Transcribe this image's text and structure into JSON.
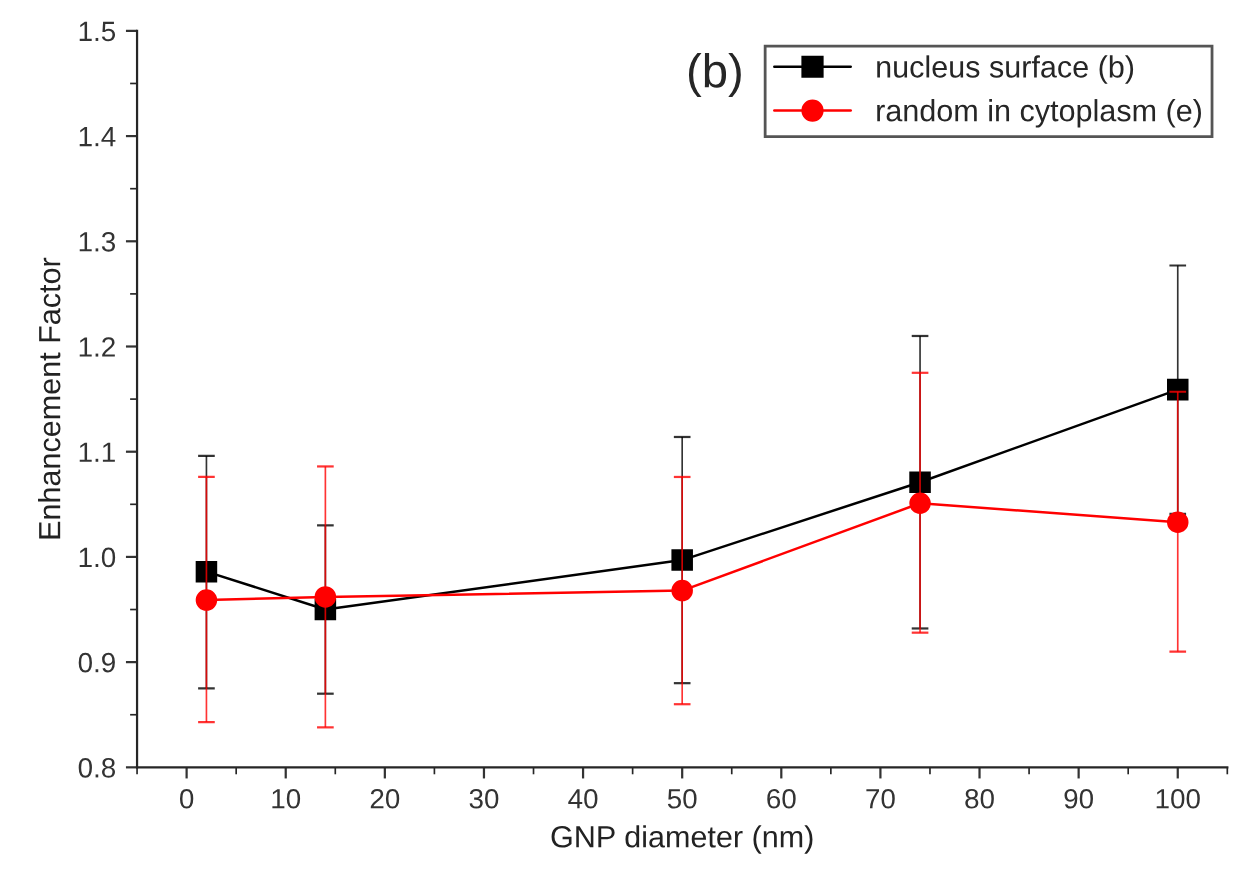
{
  "chart_data": {
    "type": "line",
    "xlabel": "GNP diameter (nm)",
    "ylabel": "Enhancement Factor",
    "annotations": [
      "(b)"
    ],
    "x": [
      2,
      14,
      50,
      74,
      100
    ],
    "series": [
      {
        "name": "nucleus surface (b)",
        "color": "#000000",
        "marker": "square",
        "values": [
          0.986,
          0.95,
          0.997,
          1.071,
          1.159
        ],
        "errors": [
          [
            0.875,
            1.096
          ],
          [
            0.87,
            1.03
          ],
          [
            0.88,
            1.114
          ],
          [
            0.932,
            1.21
          ],
          [
            1.041,
            1.277
          ]
        ]
      },
      {
        "name": "random in cytoplasm (e)",
        "color": "#ff0000",
        "marker": "circle",
        "values": [
          0.959,
          0.962,
          0.968,
          1.051,
          1.033
        ],
        "errors": [
          [
            0.843,
            1.076
          ],
          [
            0.838,
            1.086
          ],
          [
            0.86,
            1.076
          ],
          [
            0.928,
            1.175
          ],
          [
            0.91,
            1.157
          ]
        ]
      }
    ],
    "xlim": [
      -5,
      105
    ],
    "xticks": [
      0,
      10,
      20,
      30,
      40,
      50,
      60,
      70,
      80,
      90,
      100
    ],
    "ylim": [
      0.8,
      1.5
    ],
    "yticks": [
      0.8,
      0.9,
      {
        "value": 1,
        "label": "1.0"
      },
      1.1,
      1.2,
      1.3,
      1.4,
      1.5
    ],
    "grid": false,
    "legend": "top right",
    "line_style": "solid"
  }
}
